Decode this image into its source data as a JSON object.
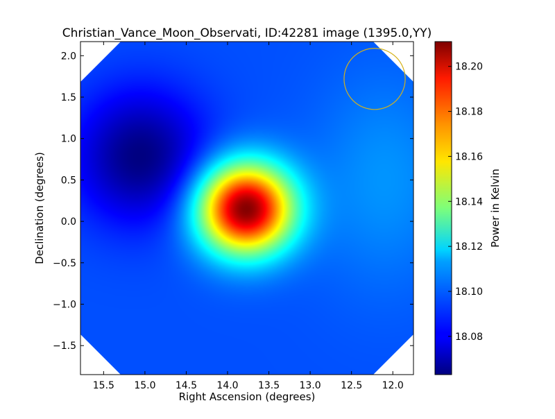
{
  "chart_data": {
    "type": "heatmap",
    "title": "Christian_Vance_Moon_Observati, ID:42281 image (1395.0,YY)",
    "xlabel": "Right Ascension (degrees)",
    "ylabel": "Declination (degrees)",
    "colorbar_label": "Power in Kelvin",
    "xlim": [
      15.78,
      11.75
    ],
    "ylim": [
      -1.85,
      2.17
    ],
    "x_ticks": [
      15.5,
      15.0,
      14.5,
      14.0,
      13.5,
      13.0,
      12.5,
      12.0
    ],
    "x_tick_labels": [
      "15.5",
      "15.0",
      "14.5",
      "14.0",
      "13.5",
      "13.0",
      "12.5",
      "12.0"
    ],
    "y_ticks": [
      -1.5,
      -1.0,
      -0.5,
      0.0,
      0.5,
      1.0,
      1.5,
      2.0
    ],
    "y_tick_labels": [
      "−1.5",
      "−1.0",
      "−0.5",
      "0.0",
      "0.5",
      "1.0",
      "1.5",
      "2.0"
    ],
    "colorbar_range": [
      18.063,
      18.211
    ],
    "colorbar_ticks": [
      18.08,
      18.1,
      18.12,
      18.14,
      18.16,
      18.18,
      18.2
    ],
    "colorbar_tick_labels": [
      "18.08",
      "18.10",
      "18.12",
      "18.14",
      "18.16",
      "18.18",
      "18.20"
    ],
    "colormap": "jet",
    "background_value": 18.093,
    "features": [
      {
        "kind": "peak",
        "ra": 13.78,
        "dec": 0.15,
        "value": 18.211,
        "sigma_ra": 0.4,
        "sigma_dec": 0.38
      },
      {
        "kind": "trough",
        "ra": 15.05,
        "dec": 0.78,
        "value": 18.063,
        "sigma_ra": 0.55,
        "sigma_dec": 0.55
      },
      {
        "kind": "bright-region",
        "ra": 12.1,
        "dec": 0.5,
        "value": 18.103,
        "sigma_ra": 0.6,
        "sigma_dec": 0.9
      }
    ],
    "beam_circle": {
      "ra": 12.22,
      "dec": 1.72,
      "radius_deg": 0.37,
      "color": "#d4b21c"
    },
    "grid": false,
    "legend": "none"
  }
}
